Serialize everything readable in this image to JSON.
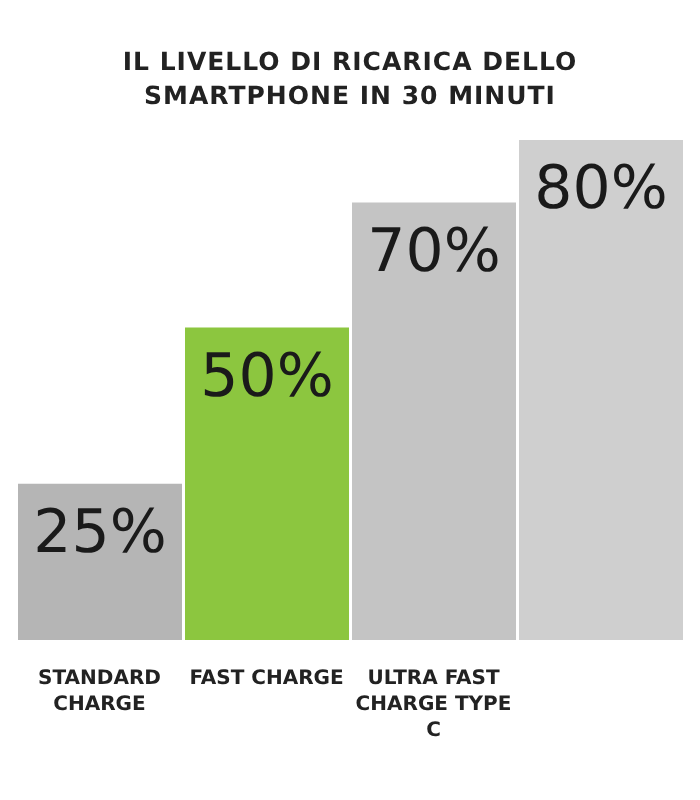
{
  "chart_data": {
    "type": "bar",
    "title": "IL LIVELLO DI RICARICA DELLO SMARTPHONE IN 30 MINUTI",
    "categories": [
      "STANDARD CHARGE",
      "FAST CHARGE",
      "ULTRA FAST CHARGE TYPE C",
      null
    ],
    "values": [
      25,
      50,
      70,
      80
    ],
    "value_labels": [
      "25%",
      "50%",
      "70%",
      "80%"
    ],
    "colors": [
      "#b5b5b5",
      "#8cc63f",
      "#c4c4c4",
      "#cfcfcf"
    ],
    "grid": false,
    "legend": false
  }
}
